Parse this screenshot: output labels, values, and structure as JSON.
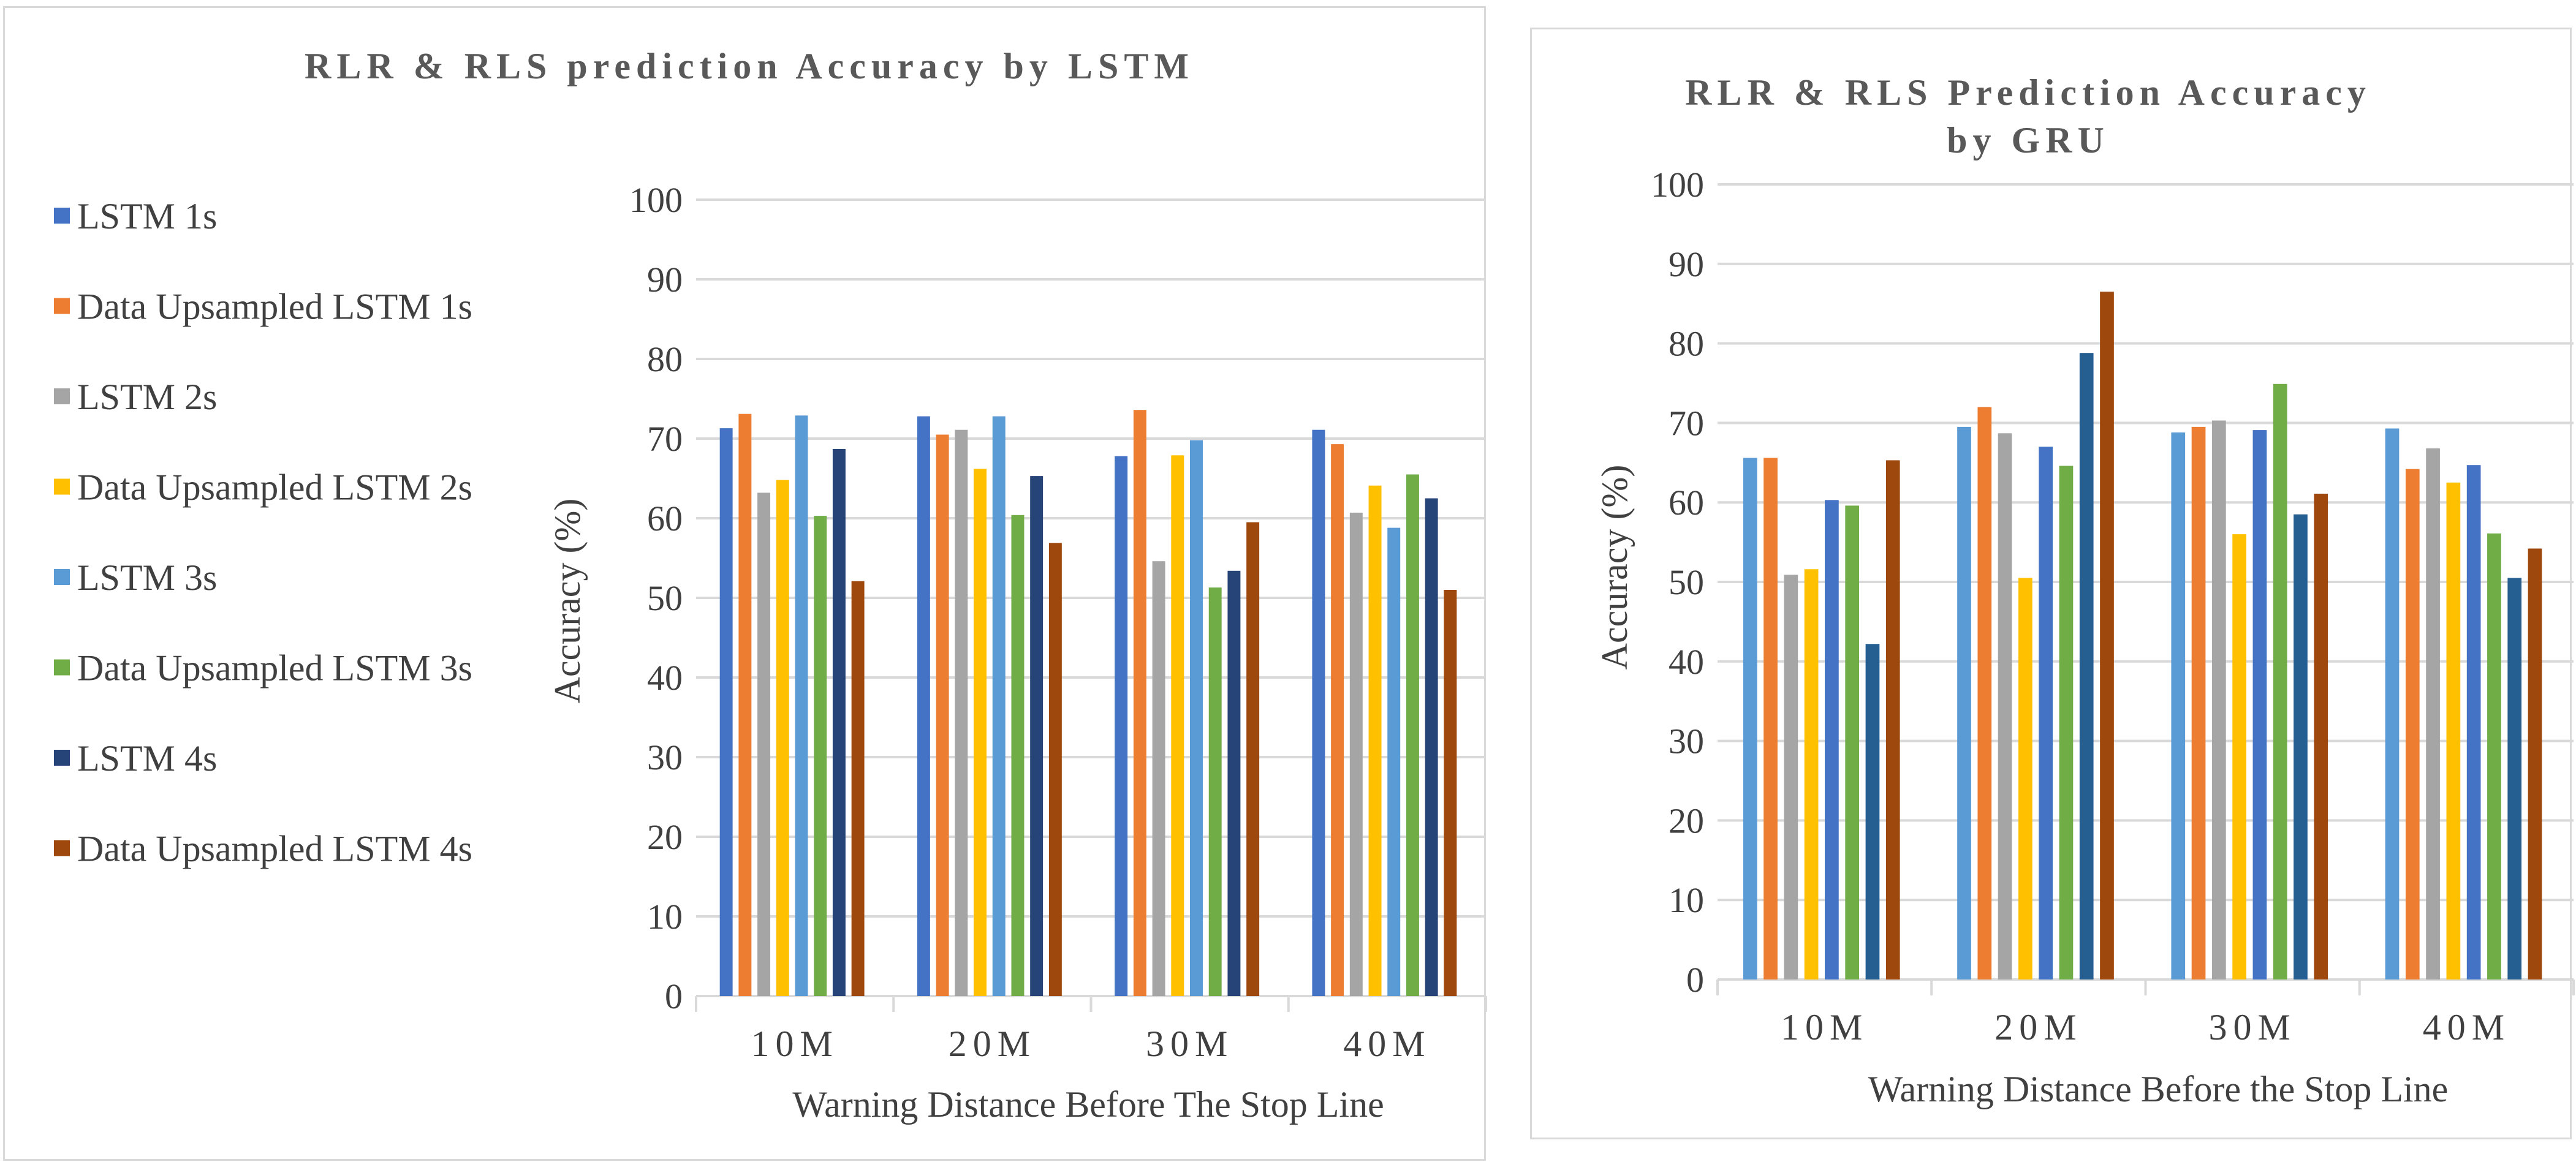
{
  "chart_data": [
    {
      "type": "bar",
      "title": "RLR & RLS prediction Accuracy by LSTM",
      "xlabel": "Warning Distance Before The Stop Line",
      "ylabel": "Accuracy (%)",
      "ylim": [
        0,
        100
      ],
      "yticks": [
        "0",
        "10",
        "20",
        "30",
        "40",
        "50",
        "60",
        "70",
        "80",
        "90",
        "100"
      ],
      "grid": true,
      "legend_position": "left",
      "categories": [
        "10M",
        "20M",
        "30M",
        "40M"
      ],
      "series": [
        {
          "name": "LSTM 1s",
          "color": "#4472C4",
          "values": [
            71.3,
            72.8,
            67.8,
            71.1
          ]
        },
        {
          "name": "Data Upsampled LSTM 1s",
          "color": "#ED7D31",
          "values": [
            73.1,
            70.5,
            73.6,
            69.3
          ]
        },
        {
          "name": "LSTM 2s",
          "color": "#A5A5A5",
          "values": [
            63.2,
            71.1,
            54.6,
            60.7
          ]
        },
        {
          "name": "Data Upsampled LSTM 2s",
          "color": "#FFC000",
          "values": [
            64.8,
            66.2,
            67.9,
            64.1
          ]
        },
        {
          "name": "LSTM 3s",
          "color": "#5B9BD5",
          "values": [
            72.9,
            72.8,
            69.8,
            58.8
          ]
        },
        {
          "name": "Data Upsampled LSTM 3s",
          "color": "#70AD47",
          "values": [
            60.3,
            60.4,
            51.3,
            65.5
          ]
        },
        {
          "name": "LSTM 4s",
          "color": "#264478",
          "values": [
            68.7,
            65.3,
            53.4,
            62.5
          ]
        },
        {
          "name": "Data Upsampled LSTM 4s",
          "color": "#9E480E",
          "values": [
            52.1,
            56.9,
            59.5,
            51.0
          ]
        }
      ]
    },
    {
      "type": "bar",
      "title": "RLR & RLS Prediction Accuracy by GRU",
      "title_lines": [
        "RLR & RLS Prediction Accuracy",
        "by GRU"
      ],
      "xlabel": "Warning Distance Before the Stop Line",
      "ylabel": "Accuracy (%)",
      "ylim": [
        0,
        100
      ],
      "yticks": [
        "0",
        "10",
        "20",
        "30",
        "40",
        "50",
        "60",
        "70",
        "80",
        "90",
        "100"
      ],
      "grid": true,
      "categories": [
        "10M",
        "20M",
        "30M",
        "40M"
      ],
      "series": [
        {
          "color": "#5B9BD5",
          "values": [
            65.6,
            69.5,
            68.8,
            69.3
          ]
        },
        {
          "color": "#ED7D31",
          "values": [
            65.6,
            72.0,
            69.5,
            64.2
          ]
        },
        {
          "color": "#A5A5A5",
          "values": [
            50.9,
            68.7,
            70.3,
            66.8
          ]
        },
        {
          "color": "#FFC000",
          "values": [
            51.6,
            50.5,
            56.0,
            62.5
          ]
        },
        {
          "color": "#4472C4",
          "values": [
            60.3,
            67.0,
            69.1,
            64.7
          ]
        },
        {
          "color": "#70AD47",
          "values": [
            59.6,
            64.6,
            74.9,
            56.1
          ]
        },
        {
          "color": "#255E91",
          "values": [
            42.2,
            78.8,
            58.5,
            50.5
          ]
        },
        {
          "color": "#9E480E",
          "values": [
            65.3,
            86.5,
            61.1,
            54.2
          ]
        }
      ]
    }
  ]
}
